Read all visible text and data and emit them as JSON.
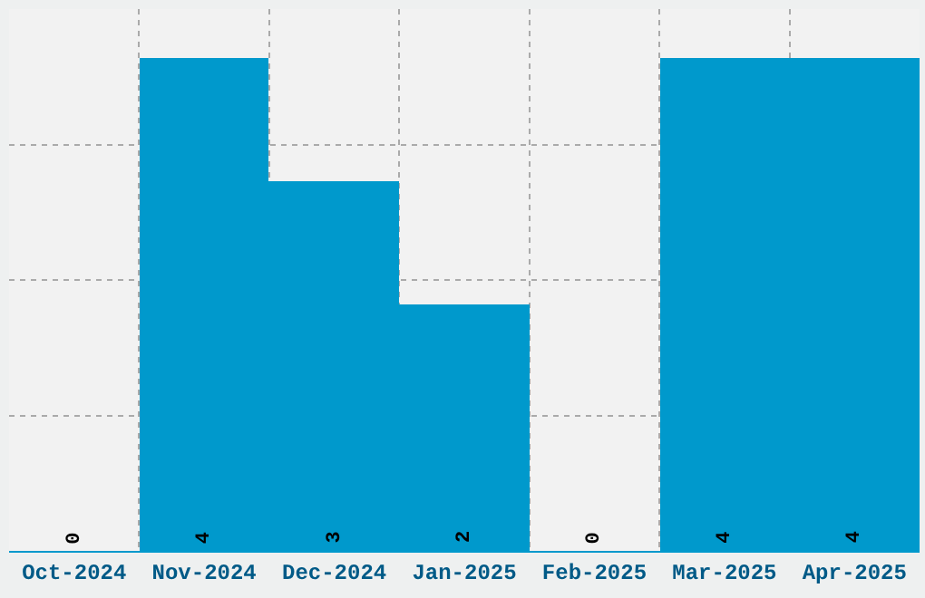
{
  "chart_data": {
    "type": "bar",
    "categories": [
      "Oct-2024",
      "Nov-2024",
      "Dec-2024",
      "Jan-2025",
      "Feb-2025",
      "Mar-2025",
      "Apr-2025"
    ],
    "values": [
      0,
      4,
      3,
      2,
      0,
      4,
      4
    ],
    "color": "#0099cc",
    "ylim": [
      0,
      4.4
    ],
    "yticks": [
      {
        "value": 1.1,
        "label": null
      },
      {
        "value": 2.2,
        "label": null
      },
      {
        "value": 3.3,
        "label": null
      }
    ],
    "tick_labels": "x",
    "data_labels": true,
    "grid": true,
    "legend": false
  }
}
